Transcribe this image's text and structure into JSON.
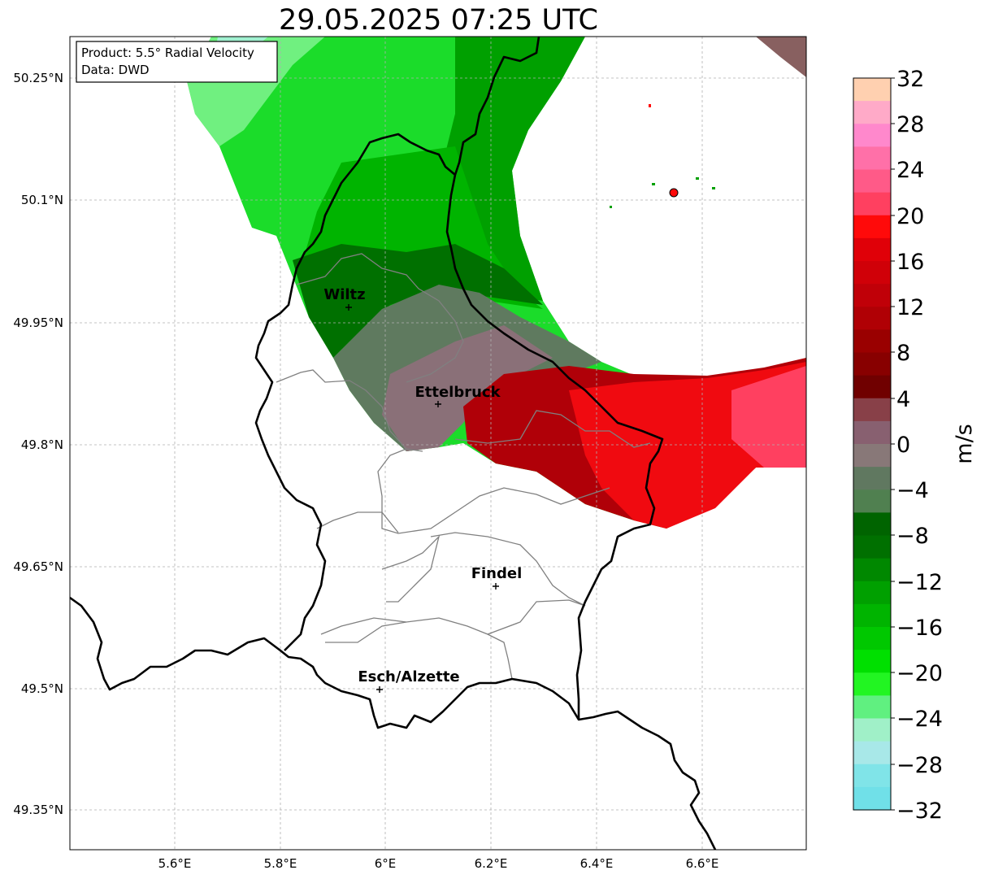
{
  "title": "29.05.2025 07:25 UTC",
  "info_box": {
    "product": "Product: 5.5° Radial Velocity",
    "data": "Data: DWD"
  },
  "axes": {
    "lat_ticks": [
      "50.25°N",
      "50.1°N",
      "49.95°N",
      "49.8°N",
      "49.65°N",
      "49.5°N",
      "49.35°N"
    ],
    "lon_ticks": [
      "5.6°E",
      "5.8°E",
      "6°E",
      "6.2°E",
      "6.4°E",
      "6.6°E"
    ]
  },
  "places": [
    {
      "name": "Wiltz"
    },
    {
      "name": "Ettelbruck"
    },
    {
      "name": "Findel"
    },
    {
      "name": "Esch/Alzette"
    }
  ],
  "colorbar": {
    "unit": "m/s",
    "ticks": [
      "32",
      "28",
      "24",
      "20",
      "16",
      "12",
      "8",
      "4",
      "0",
      "−4",
      "−8",
      "−12",
      "−16",
      "−20",
      "−24",
      "−28",
      "−32"
    ],
    "colors": [
      "#ffd0b0",
      "#ffaac8",
      "#ff88cc",
      "#ff70a8",
      "#ff5a88",
      "#ff4060",
      "#ff0a0a",
      "#e00008",
      "#d00008",
      "#c00008",
      "#b00005",
      "#9a0000",
      "#880000",
      "#700000",
      "#884048",
      "#886070",
      "#887878",
      "#607860",
      "#508050",
      "#006400",
      "#007000",
      "#008800",
      "#00a000",
      "#00b400",
      "#00c800",
      "#00e000",
      "#22f522",
      "#60f080",
      "#a0f0c8",
      "#a8e8e8",
      "#80e4e8",
      "#70e0e8"
    ]
  }
}
